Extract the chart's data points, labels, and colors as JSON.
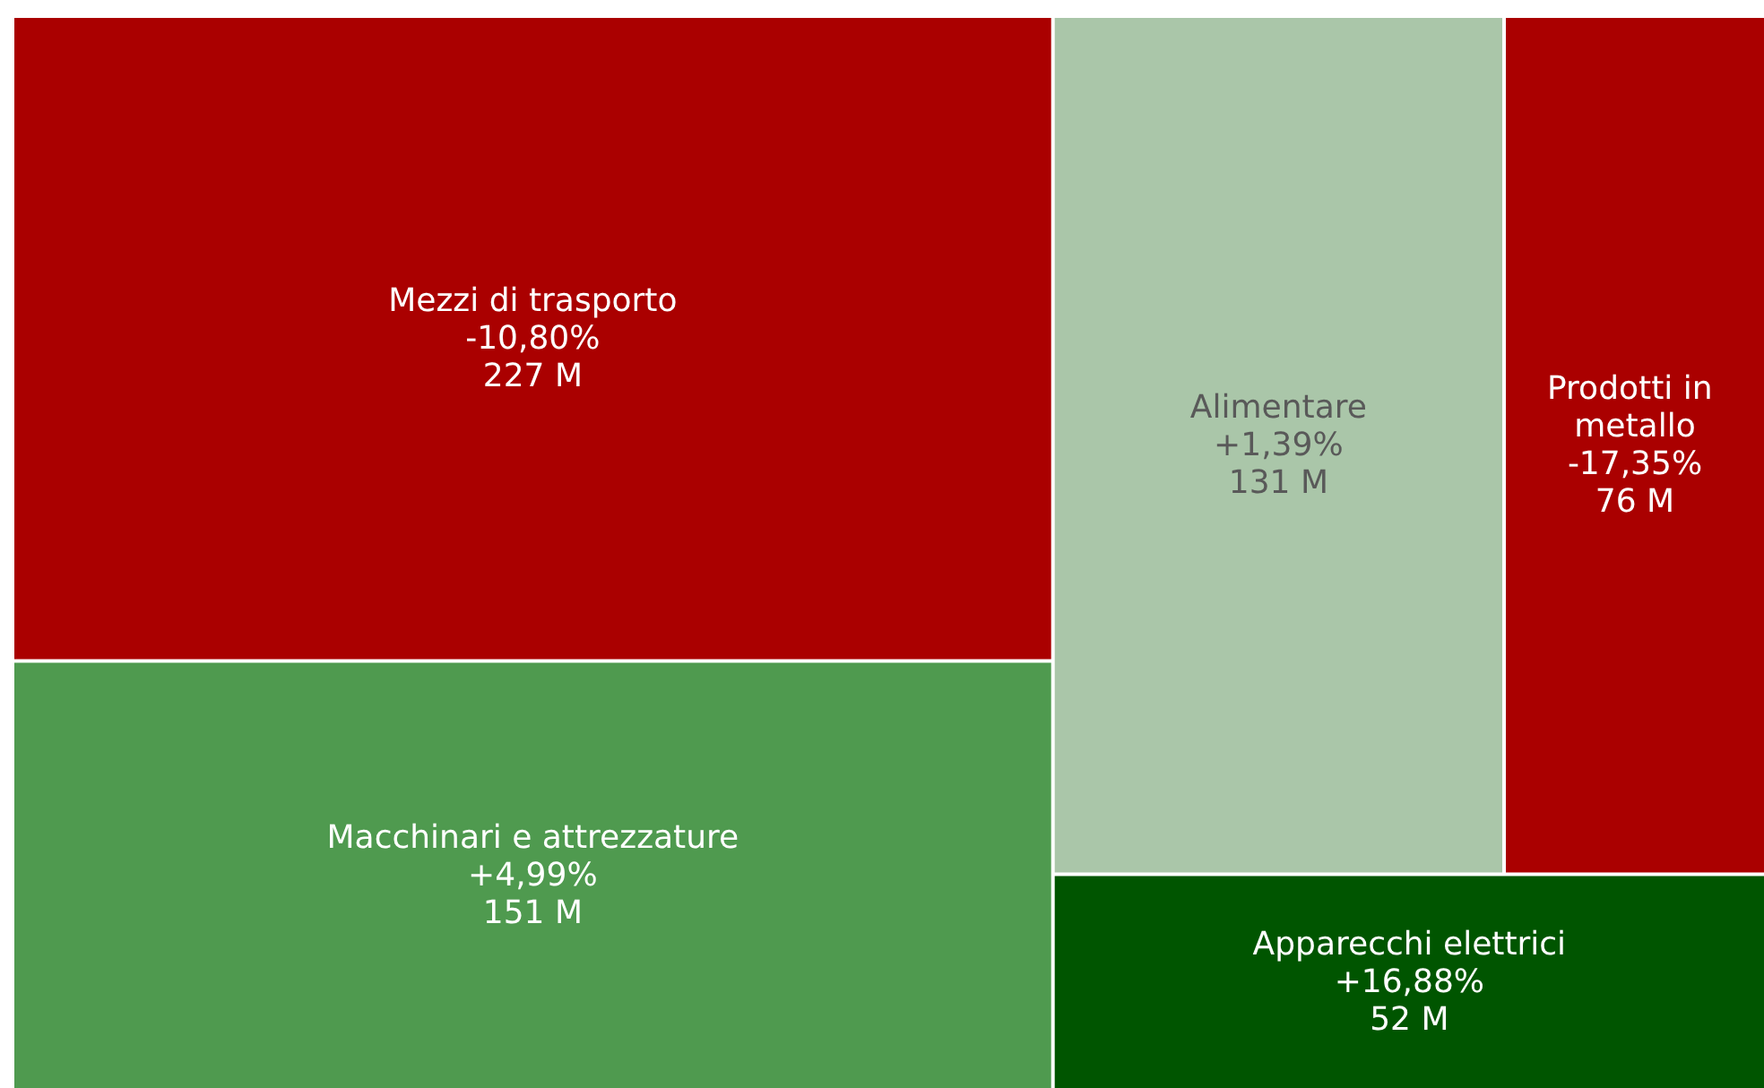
{
  "chart_data": {
    "type": "other",
    "categories": [
      "Mezzi di trasporto",
      "Macchinari e attrezzature",
      "Alimentare",
      "Prodotti in metallo",
      "Apparecchi elettrici"
    ],
    "series": [
      {
        "values": [
          227,
          151,
          131,
          76,
          52
        ],
        "value_labels": [
          "227 M",
          "151 M",
          "131 M",
          "76 M",
          "52 M"
        ],
        "colors": [
          "#aa0000",
          "#4f9a4f",
          "#aac6a9",
          "#aa0000",
          "#005500"
        ]
      },
      {
        "values": [
          -10.8,
          4.99,
          1.39,
          -17.35,
          16.88
        ],
        "value_labels": [
          "-10,80%",
          "+4,99%",
          "+1,39%",
          "-17,35%",
          "+16,88%"
        ]
      }
    ]
  }
}
